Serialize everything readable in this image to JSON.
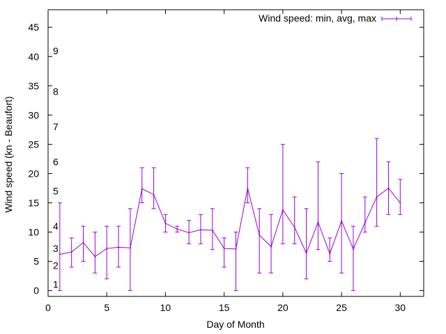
{
  "chart_data": {
    "type": "line",
    "xlabel": "Day of Month",
    "ylabel": "Wind speed (kn - Beaufort)",
    "xlim": [
      0,
      32
    ],
    "ylim": [
      -1,
      48
    ],
    "x_ticks": [
      0,
      5,
      10,
      15,
      20,
      25,
      30
    ],
    "y_ticks": [
      0,
      5,
      10,
      15,
      20,
      25,
      30,
      35,
      40,
      45
    ],
    "grid": false,
    "legend_position": "top-right",
    "beaufort_labels": [
      {
        "value": 1,
        "label": "1"
      },
      {
        "value": 2,
        "label": "2"
      },
      {
        "value": 3,
        "label": "3"
      },
      {
        "value": 4,
        "label": "4"
      },
      {
        "value": 5,
        "label": "5"
      },
      {
        "value": 6,
        "label": "6"
      },
      {
        "value": 7,
        "label": "7"
      },
      {
        "value": 8,
        "label": "8"
      },
      {
        "value": 9,
        "label": "9"
      }
    ],
    "beaufort_label_positions": [
      1.1,
      4.3,
      7.2,
      11.0,
      17.0,
      22.0,
      28.0,
      34.0,
      41.0
    ],
    "series": [
      {
        "name": "Wind speed: min, avg, max",
        "color": "#9400d3",
        "x": [
          1,
          2,
          3,
          4,
          5,
          6,
          7,
          8,
          9,
          10,
          11,
          12,
          13,
          14,
          15,
          16,
          17,
          18,
          19,
          20,
          21,
          22,
          23,
          24,
          25,
          26,
          27,
          28,
          29,
          30
        ],
        "avg": [
          6.2,
          6.6,
          8.2,
          5.8,
          7.2,
          7.4,
          7.3,
          17.4,
          16.4,
          11.5,
          10.5,
          9.9,
          10.4,
          10.3,
          7.2,
          7.1,
          17.5,
          9.5,
          7.5,
          13.8,
          10.8,
          6.4,
          11.7,
          6.3,
          11.9,
          7.1,
          11.6,
          16.0,
          17.5,
          15.0
        ],
        "min": [
          0,
          4,
          5,
          3,
          2,
          4,
          0,
          15,
          14,
          10,
          10,
          8,
          8,
          7,
          4,
          0,
          15,
          3,
          3,
          8,
          8,
          2,
          7,
          5,
          3,
          0,
          10,
          11,
          13,
          13
        ],
        "max": [
          15,
          9,
          11,
          10,
          11,
          11,
          14,
          21,
          21,
          13,
          11,
          12,
          13,
          14,
          9,
          10,
          21,
          14,
          13,
          25,
          16,
          14,
          22,
          9,
          20,
          11,
          16,
          26,
          22,
          19
        ]
      }
    ]
  }
}
